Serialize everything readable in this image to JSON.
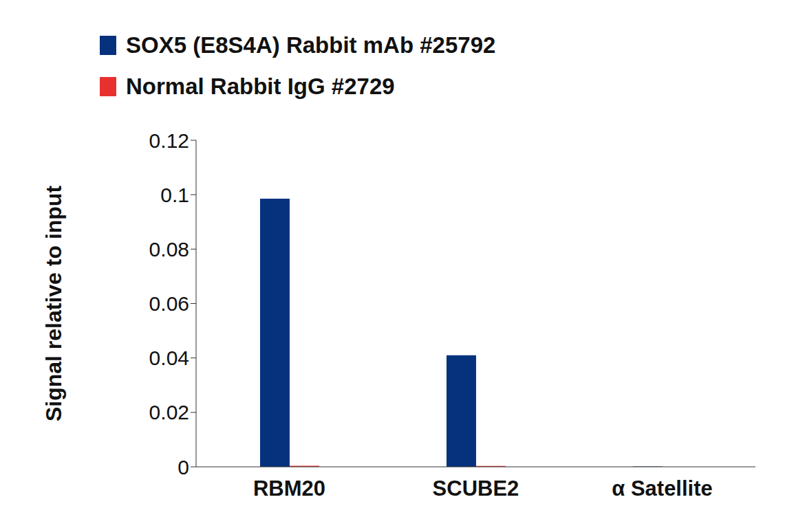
{
  "chart_data": {
    "type": "bar",
    "y_label": "Signal relative to input",
    "categories": [
      "RBM20",
      "SCUBE2",
      "α Satellite"
    ],
    "series": [
      {
        "name": "SOX5 (E8S4A) Rabbit mAb #25792",
        "color": "#06327d",
        "values": [
          0.0985,
          0.041,
          0.0001
        ]
      },
      {
        "name": "Normal Rabbit IgG #2729",
        "color": "#e8312f",
        "values": [
          0.0004,
          0.0003,
          0.0
        ]
      }
    ],
    "ylim": [
      0,
      0.12
    ],
    "yticks": [
      0,
      0.02,
      0.04,
      0.06,
      0.08,
      0.1,
      0.12
    ],
    "grid": false,
    "legend": "top-left"
  }
}
